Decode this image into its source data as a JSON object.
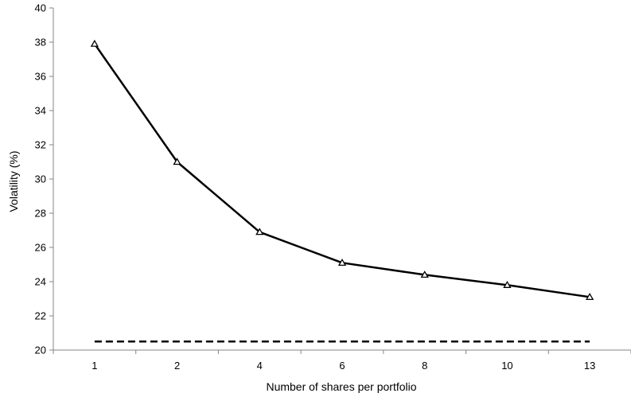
{
  "chart_data": {
    "type": "line",
    "title": "",
    "xlabel": "Number of  shares per portfolio",
    "ylabel": "Volatility (%)",
    "categories": [
      "1",
      "2",
      "4",
      "6",
      "8",
      "10",
      "13"
    ],
    "series": [
      {
        "values": [
          37.9,
          31.0,
          26.9,
          25.1,
          24.4,
          23.8,
          23.1
        ],
        "marker": "triangle",
        "line_style": "solid",
        "color": "#000000"
      },
      {
        "values": [
          20.5,
          20.5,
          20.5,
          20.5,
          20.5,
          20.5,
          20.5
        ],
        "marker": "none",
        "line_style": "dashed",
        "color": "#000000"
      }
    ],
    "ylim": [
      20,
      40
    ],
    "yticks": [
      "20",
      "22",
      "24",
      "26",
      "28",
      "30",
      "32",
      "34",
      "36",
      "38",
      "40"
    ],
    "grid": false,
    "legend": "none"
  }
}
